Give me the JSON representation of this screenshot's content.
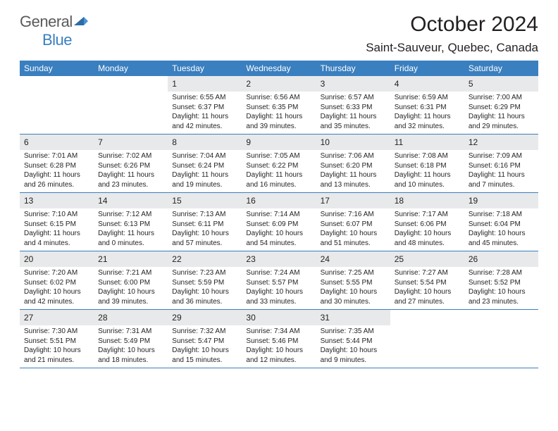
{
  "logo": {
    "text_general": "General",
    "text_blue": "Blue"
  },
  "title": "October 2024",
  "location": "Saint-Sauveur, Quebec, Canada",
  "colors": {
    "header_bg": "#3a7fbf",
    "header_text": "#ffffff",
    "daynum_bg": "#e8e9ea",
    "text": "#231f20",
    "logo_gray": "#595a5c",
    "logo_blue": "#3a7fbf",
    "page_bg": "#ffffff"
  },
  "typography": {
    "title_fontsize": 30,
    "location_fontsize": 17,
    "dayheader_fontsize": 12,
    "daynum_fontsize": 12,
    "detail_fontsize": 10,
    "logo_fontsize": 22,
    "font_family": "Arial"
  },
  "day_headers": [
    "Sunday",
    "Monday",
    "Tuesday",
    "Wednesday",
    "Thursday",
    "Friday",
    "Saturday"
  ],
  "weeks": [
    [
      {
        "empty": true
      },
      {
        "empty": true
      },
      {
        "num": "1",
        "sunrise": "Sunrise: 6:55 AM",
        "sunset": "Sunset: 6:37 PM",
        "daylight": "Daylight: 11 hours and 42 minutes."
      },
      {
        "num": "2",
        "sunrise": "Sunrise: 6:56 AM",
        "sunset": "Sunset: 6:35 PM",
        "daylight": "Daylight: 11 hours and 39 minutes."
      },
      {
        "num": "3",
        "sunrise": "Sunrise: 6:57 AM",
        "sunset": "Sunset: 6:33 PM",
        "daylight": "Daylight: 11 hours and 35 minutes."
      },
      {
        "num": "4",
        "sunrise": "Sunrise: 6:59 AM",
        "sunset": "Sunset: 6:31 PM",
        "daylight": "Daylight: 11 hours and 32 minutes."
      },
      {
        "num": "5",
        "sunrise": "Sunrise: 7:00 AM",
        "sunset": "Sunset: 6:29 PM",
        "daylight": "Daylight: 11 hours and 29 minutes."
      }
    ],
    [
      {
        "num": "6",
        "sunrise": "Sunrise: 7:01 AM",
        "sunset": "Sunset: 6:28 PM",
        "daylight": "Daylight: 11 hours and 26 minutes."
      },
      {
        "num": "7",
        "sunrise": "Sunrise: 7:02 AM",
        "sunset": "Sunset: 6:26 PM",
        "daylight": "Daylight: 11 hours and 23 minutes."
      },
      {
        "num": "8",
        "sunrise": "Sunrise: 7:04 AM",
        "sunset": "Sunset: 6:24 PM",
        "daylight": "Daylight: 11 hours and 19 minutes."
      },
      {
        "num": "9",
        "sunrise": "Sunrise: 7:05 AM",
        "sunset": "Sunset: 6:22 PM",
        "daylight": "Daylight: 11 hours and 16 minutes."
      },
      {
        "num": "10",
        "sunrise": "Sunrise: 7:06 AM",
        "sunset": "Sunset: 6:20 PM",
        "daylight": "Daylight: 11 hours and 13 minutes."
      },
      {
        "num": "11",
        "sunrise": "Sunrise: 7:08 AM",
        "sunset": "Sunset: 6:18 PM",
        "daylight": "Daylight: 11 hours and 10 minutes."
      },
      {
        "num": "12",
        "sunrise": "Sunrise: 7:09 AM",
        "sunset": "Sunset: 6:16 PM",
        "daylight": "Daylight: 11 hours and 7 minutes."
      }
    ],
    [
      {
        "num": "13",
        "sunrise": "Sunrise: 7:10 AM",
        "sunset": "Sunset: 6:15 PM",
        "daylight": "Daylight: 11 hours and 4 minutes."
      },
      {
        "num": "14",
        "sunrise": "Sunrise: 7:12 AM",
        "sunset": "Sunset: 6:13 PM",
        "daylight": "Daylight: 11 hours and 0 minutes."
      },
      {
        "num": "15",
        "sunrise": "Sunrise: 7:13 AM",
        "sunset": "Sunset: 6:11 PM",
        "daylight": "Daylight: 10 hours and 57 minutes."
      },
      {
        "num": "16",
        "sunrise": "Sunrise: 7:14 AM",
        "sunset": "Sunset: 6:09 PM",
        "daylight": "Daylight: 10 hours and 54 minutes."
      },
      {
        "num": "17",
        "sunrise": "Sunrise: 7:16 AM",
        "sunset": "Sunset: 6:07 PM",
        "daylight": "Daylight: 10 hours and 51 minutes."
      },
      {
        "num": "18",
        "sunrise": "Sunrise: 7:17 AM",
        "sunset": "Sunset: 6:06 PM",
        "daylight": "Daylight: 10 hours and 48 minutes."
      },
      {
        "num": "19",
        "sunrise": "Sunrise: 7:18 AM",
        "sunset": "Sunset: 6:04 PM",
        "daylight": "Daylight: 10 hours and 45 minutes."
      }
    ],
    [
      {
        "num": "20",
        "sunrise": "Sunrise: 7:20 AM",
        "sunset": "Sunset: 6:02 PM",
        "daylight": "Daylight: 10 hours and 42 minutes."
      },
      {
        "num": "21",
        "sunrise": "Sunrise: 7:21 AM",
        "sunset": "Sunset: 6:00 PM",
        "daylight": "Daylight: 10 hours and 39 minutes."
      },
      {
        "num": "22",
        "sunrise": "Sunrise: 7:23 AM",
        "sunset": "Sunset: 5:59 PM",
        "daylight": "Daylight: 10 hours and 36 minutes."
      },
      {
        "num": "23",
        "sunrise": "Sunrise: 7:24 AM",
        "sunset": "Sunset: 5:57 PM",
        "daylight": "Daylight: 10 hours and 33 minutes."
      },
      {
        "num": "24",
        "sunrise": "Sunrise: 7:25 AM",
        "sunset": "Sunset: 5:55 PM",
        "daylight": "Daylight: 10 hours and 30 minutes."
      },
      {
        "num": "25",
        "sunrise": "Sunrise: 7:27 AM",
        "sunset": "Sunset: 5:54 PM",
        "daylight": "Daylight: 10 hours and 27 minutes."
      },
      {
        "num": "26",
        "sunrise": "Sunrise: 7:28 AM",
        "sunset": "Sunset: 5:52 PM",
        "daylight": "Daylight: 10 hours and 23 minutes."
      }
    ],
    [
      {
        "num": "27",
        "sunrise": "Sunrise: 7:30 AM",
        "sunset": "Sunset: 5:51 PM",
        "daylight": "Daylight: 10 hours and 21 minutes."
      },
      {
        "num": "28",
        "sunrise": "Sunrise: 7:31 AM",
        "sunset": "Sunset: 5:49 PM",
        "daylight": "Daylight: 10 hours and 18 minutes."
      },
      {
        "num": "29",
        "sunrise": "Sunrise: 7:32 AM",
        "sunset": "Sunset: 5:47 PM",
        "daylight": "Daylight: 10 hours and 15 minutes."
      },
      {
        "num": "30",
        "sunrise": "Sunrise: 7:34 AM",
        "sunset": "Sunset: 5:46 PM",
        "daylight": "Daylight: 10 hours and 12 minutes."
      },
      {
        "num": "31",
        "sunrise": "Sunrise: 7:35 AM",
        "sunset": "Sunset: 5:44 PM",
        "daylight": "Daylight: 10 hours and 9 minutes."
      },
      {
        "empty": true
      },
      {
        "empty": true
      }
    ]
  ]
}
